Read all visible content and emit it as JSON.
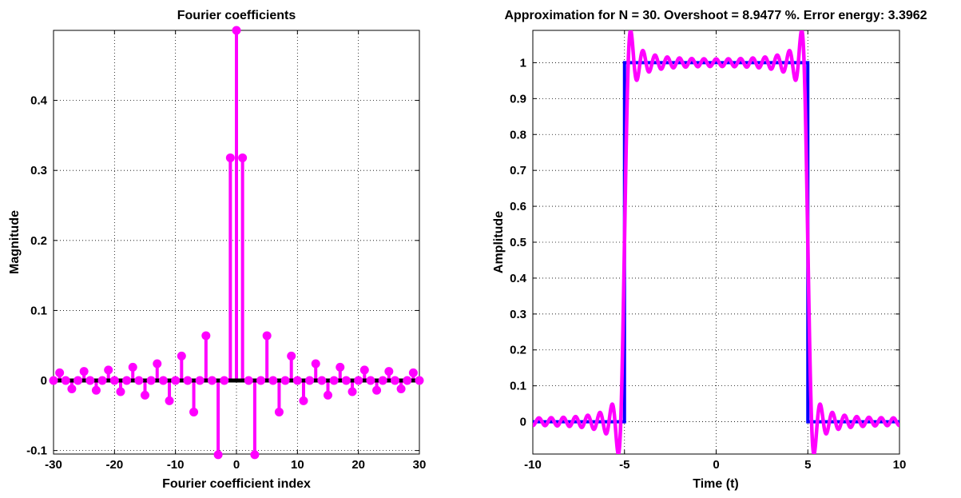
{
  "chart_data": [
    {
      "type": "stem",
      "title": "Fourier coefficients",
      "xlabel": "Fourier coefficient index",
      "ylabel": "Magnitude",
      "xlim": [
        -30,
        30
      ],
      "ylim": [
        -0.105,
        0.5
      ],
      "xticks": [
        -30,
        -20,
        -10,
        0,
        10,
        20,
        30
      ],
      "yticks": [
        -0.1,
        0,
        0.1,
        0.2,
        0.3,
        0.4
      ],
      "grid": true,
      "colors": {
        "stem": "#ff00ff",
        "baseline": "#000000"
      },
      "series": [
        {
          "x": [
            -30,
            -29,
            -28,
            -27,
            -26,
            -25,
            -24,
            -23,
            -22,
            -21,
            -20,
            -19,
            -18,
            -17,
            -16,
            -15,
            -14,
            -13,
            -12,
            -11,
            -10,
            -9,
            -8,
            -7,
            -6,
            -5,
            -4,
            -3,
            -2,
            -1,
            0,
            1,
            2,
            3,
            4,
            5,
            6,
            7,
            8,
            9,
            10,
            11,
            12,
            13,
            14,
            15,
            16,
            17,
            18,
            19,
            20,
            21,
            22,
            23,
            24,
            25,
            26,
            27,
            28,
            29,
            30
          ],
          "values": [
            0,
            0.011,
            0,
            -0.012,
            0,
            0.013,
            0,
            -0.014,
            0,
            0.015,
            0,
            -0.016,
            0,
            0.019,
            0,
            -0.021,
            0,
            0.024,
            0,
            -0.029,
            0,
            0.035,
            0,
            -0.045,
            0,
            0.064,
            0,
            -0.106,
            0,
            0.318,
            0.5,
            0.318,
            0,
            -0.106,
            0,
            0.064,
            0,
            -0.045,
            0,
            0.035,
            0,
            -0.029,
            0,
            0.024,
            0,
            -0.021,
            0,
            0.019,
            0,
            -0.016,
            0,
            0.015,
            0,
            -0.014,
            0,
            0.013,
            0,
            -0.012,
            0,
            0.011,
            0
          ]
        }
      ]
    },
    {
      "type": "line",
      "title": "Approximation for N = 30. Overshoot = 8.9477 %. Error energy: 3.3962",
      "xlabel": "Time (t)",
      "ylabel": "Amplitude",
      "xlim": [
        -10,
        10
      ],
      "ylim": [
        -0.09,
        1.09
      ],
      "xticks": [
        -10,
        -5,
        0,
        5,
        10
      ],
      "yticks": [
        0,
        0.1,
        0.2,
        0.3,
        0.4,
        0.5,
        0.6,
        0.7,
        0.8,
        0.9,
        1
      ],
      "grid": true,
      "series": [
        {
          "kind": "square-pulse",
          "color": "#0000ff",
          "low": 0,
          "high": 1,
          "edges": [
            -5,
            5
          ]
        },
        {
          "kind": "partial-fourier-sum",
          "color": "#ff00ff",
          "N": 30,
          "overshoot_percent": 8.9477,
          "error_energy": 3.3962
        }
      ]
    }
  ]
}
